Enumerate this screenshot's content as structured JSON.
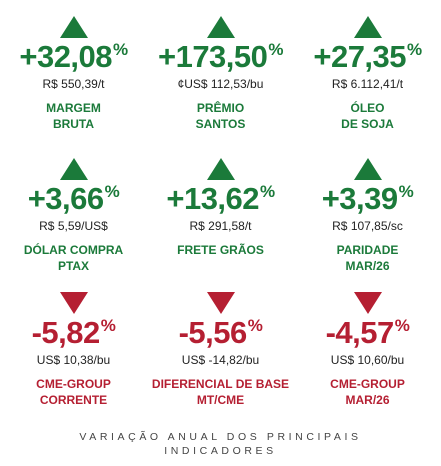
{
  "indicators": [
    {
      "pct": "+32,08",
      "sym": "%",
      "price": "R$ 550,39/t",
      "label1": "MARGEM",
      "label2": "BRUTA",
      "dir": "up"
    },
    {
      "pct": "+173,50",
      "sym": "%",
      "price": "¢US$ 112,53/bu",
      "label1": "PRÊMIO",
      "label2": "SANTOS",
      "dir": "up"
    },
    {
      "pct": "+27,35",
      "sym": "%",
      "price": "R$ 6.112,41/t",
      "label1": "ÓLEO",
      "label2": "DE SOJA",
      "dir": "up"
    },
    {
      "pct": "+3,66",
      "sym": "%",
      "price": "R$ 5,59/US$",
      "label1": "DÓLAR COMPRA",
      "label2": "PTAX",
      "dir": "up"
    },
    {
      "pct": "+13,62",
      "sym": "%",
      "price": "R$ 291,58/t",
      "label1": "FRETE GRÃOS",
      "label2": "",
      "dir": "up"
    },
    {
      "pct": "+3,39",
      "sym": "%",
      "price": "R$ 107,85/sc",
      "label1": "PARIDADE",
      "label2": "MAR/26",
      "dir": "up"
    },
    {
      "pct": "-5,82",
      "sym": "%",
      "price": "US$ 10,38/bu",
      "label1": "CME-GROUP",
      "label2": "CORRENTE",
      "dir": "down"
    },
    {
      "pct": "-5,56",
      "sym": "%",
      "price": "US$ -14,82/bu",
      "label1": "DIFERENCIAL DE BASE",
      "label2": "MT/CME",
      "dir": "down"
    },
    {
      "pct": "-4,57",
      "sym": "%",
      "price": "US$ 10,60/bu",
      "label1": "CME-GROUP",
      "label2": "MAR/26",
      "dir": "down"
    }
  ],
  "footer": {
    "line1": "VARIAÇÃO ANUAL DOS PRINCIPAIS",
    "line2": "INDICADORES"
  },
  "colors": {
    "up": "#1b7a3a",
    "down": "#b51f32"
  }
}
